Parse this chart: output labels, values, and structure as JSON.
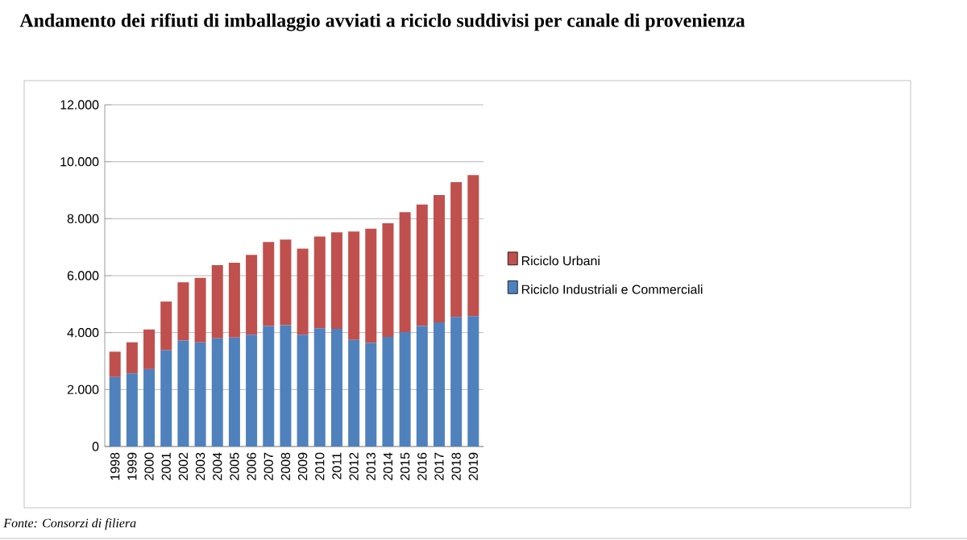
{
  "chart_data": {
    "type": "bar",
    "stacked": true,
    "title": "Andamento dei rifiuti di imballaggio avviati a riciclo suddivisi per canale di provenienza",
    "categories": [
      "1998",
      "1999",
      "2000",
      "2001",
      "2002",
      "2003",
      "2004",
      "2005",
      "2006",
      "2007",
      "2008",
      "2009",
      "2010",
      "2011",
      "2012",
      "2013",
      "2014",
      "2015",
      "2016",
      "2017",
      "2018",
      "2019"
    ],
    "series": [
      {
        "name": "Riciclo Industriali e Commerciali",
        "color": "#4f81bd",
        "values": [
          2440,
          2570,
          2720,
          3380,
          3720,
          3660,
          3800,
          3830,
          3930,
          4230,
          4260,
          3930,
          4150,
          4130,
          3740,
          3640,
          3850,
          4020,
          4230,
          4360,
          4550,
          4580
        ]
      },
      {
        "name": "Riciclo Urbani",
        "color": "#c0504d",
        "values": [
          890,
          1090,
          1390,
          1710,
          2050,
          2260,
          2570,
          2620,
          2800,
          2950,
          3010,
          3020,
          3220,
          3390,
          3810,
          4010,
          3990,
          4210,
          4270,
          4470,
          4730,
          4950
        ]
      }
    ],
    "ylim": [
      0,
      12000
    ],
    "yticks": [
      {
        "value": 0,
        "label": "0"
      },
      {
        "value": 2000,
        "label": "2.000"
      },
      {
        "value": 4000,
        "label": "4.000"
      },
      {
        "value": 6000,
        "label": "6.000"
      },
      {
        "value": 8000,
        "label": "8.000"
      },
      {
        "value": 10000,
        "label": "10.000"
      },
      {
        "value": 12000,
        "label": "12.000"
      }
    ],
    "grid": "y",
    "legend": "right",
    "annotations": [
      "Fonte: Consorzi di filiera"
    ]
  }
}
